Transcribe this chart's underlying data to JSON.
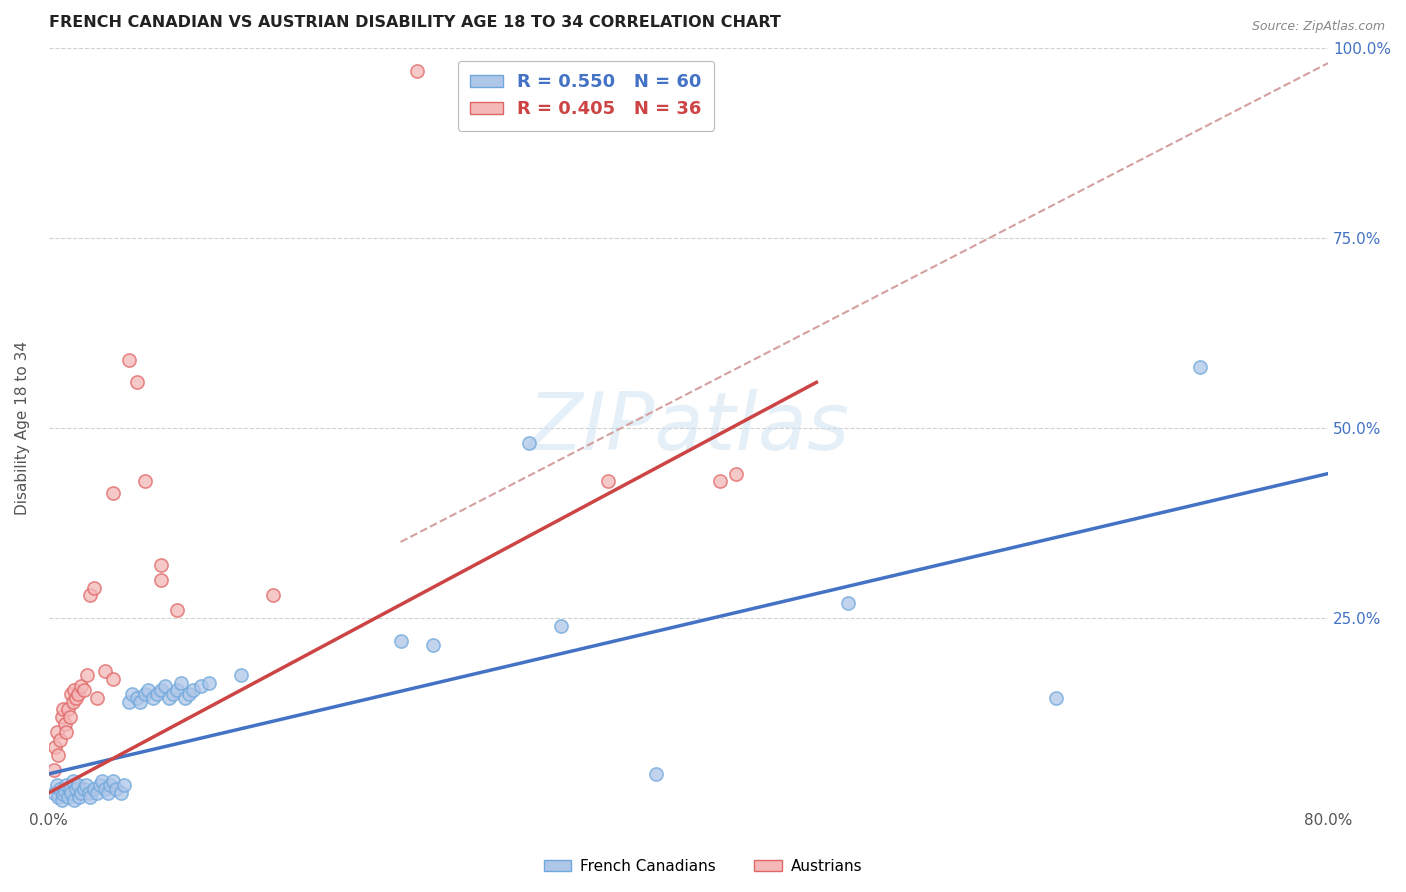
{
  "title": "FRENCH CANADIAN VS AUSTRIAN DISABILITY AGE 18 TO 34 CORRELATION CHART",
  "source": "Source: ZipAtlas.com",
  "ylabel": "Disability Age 18 to 34",
  "xlim": [
    0.0,
    0.8
  ],
  "ylim": [
    0.0,
    1.0
  ],
  "legend_blue_label": "R = 0.550   N = 60",
  "legend_pink_label": "R = 0.405   N = 36",
  "legend_footer_blue": "French Canadians",
  "legend_footer_pink": "Austrians",
  "blue_fill": "#aec6e8",
  "pink_fill": "#f4b8b8",
  "blue_edge": "#6fa8dc",
  "pink_edge": "#e06666",
  "diagonal_color": "#d4a0a0",
  "blue_line_color": "#4472c4",
  "pink_line_color": "#cc4444",
  "watermark": "ZIPatlas",
  "blue_scatter": [
    [
      0.003,
      0.02
    ],
    [
      0.005,
      0.03
    ],
    [
      0.006,
      0.015
    ],
    [
      0.007,
      0.025
    ],
    [
      0.008,
      0.01
    ],
    [
      0.009,
      0.018
    ],
    [
      0.01,
      0.022
    ],
    [
      0.011,
      0.03
    ],
    [
      0.012,
      0.015
    ],
    [
      0.013,
      0.025
    ],
    [
      0.014,
      0.02
    ],
    [
      0.015,
      0.035
    ],
    [
      0.016,
      0.01
    ],
    [
      0.017,
      0.025
    ],
    [
      0.018,
      0.03
    ],
    [
      0.019,
      0.015
    ],
    [
      0.02,
      0.02
    ],
    [
      0.022,
      0.025
    ],
    [
      0.023,
      0.03
    ],
    [
      0.025,
      0.02
    ],
    [
      0.026,
      0.015
    ],
    [
      0.028,
      0.025
    ],
    [
      0.03,
      0.02
    ],
    [
      0.032,
      0.03
    ],
    [
      0.033,
      0.035
    ],
    [
      0.035,
      0.025
    ],
    [
      0.037,
      0.02
    ],
    [
      0.038,
      0.03
    ],
    [
      0.04,
      0.035
    ],
    [
      0.042,
      0.025
    ],
    [
      0.045,
      0.02
    ],
    [
      0.047,
      0.03
    ],
    [
      0.05,
      0.14
    ],
    [
      0.052,
      0.15
    ],
    [
      0.055,
      0.145
    ],
    [
      0.057,
      0.14
    ],
    [
      0.06,
      0.15
    ],
    [
      0.062,
      0.155
    ],
    [
      0.065,
      0.145
    ],
    [
      0.068,
      0.15
    ],
    [
      0.07,
      0.155
    ],
    [
      0.073,
      0.16
    ],
    [
      0.075,
      0.145
    ],
    [
      0.078,
      0.15
    ],
    [
      0.08,
      0.155
    ],
    [
      0.083,
      0.165
    ],
    [
      0.085,
      0.145
    ],
    [
      0.088,
      0.15
    ],
    [
      0.09,
      0.155
    ],
    [
      0.095,
      0.16
    ],
    [
      0.1,
      0.165
    ],
    [
      0.12,
      0.175
    ],
    [
      0.22,
      0.22
    ],
    [
      0.24,
      0.215
    ],
    [
      0.3,
      0.48
    ],
    [
      0.32,
      0.24
    ],
    [
      0.38,
      0.045
    ],
    [
      0.5,
      0.27
    ],
    [
      0.63,
      0.145
    ],
    [
      0.72,
      0.58
    ]
  ],
  "pink_scatter": [
    [
      0.003,
      0.05
    ],
    [
      0.004,
      0.08
    ],
    [
      0.005,
      0.1
    ],
    [
      0.006,
      0.07
    ],
    [
      0.007,
      0.09
    ],
    [
      0.008,
      0.12
    ],
    [
      0.009,
      0.13
    ],
    [
      0.01,
      0.11
    ],
    [
      0.011,
      0.1
    ],
    [
      0.012,
      0.13
    ],
    [
      0.013,
      0.12
    ],
    [
      0.014,
      0.15
    ],
    [
      0.015,
      0.14
    ],
    [
      0.016,
      0.155
    ],
    [
      0.017,
      0.145
    ],
    [
      0.018,
      0.15
    ],
    [
      0.02,
      0.16
    ],
    [
      0.022,
      0.155
    ],
    [
      0.024,
      0.175
    ],
    [
      0.026,
      0.28
    ],
    [
      0.028,
      0.29
    ],
    [
      0.03,
      0.145
    ],
    [
      0.035,
      0.18
    ],
    [
      0.04,
      0.17
    ],
    [
      0.04,
      0.415
    ],
    [
      0.05,
      0.59
    ],
    [
      0.055,
      0.56
    ],
    [
      0.06,
      0.43
    ],
    [
      0.07,
      0.3
    ],
    [
      0.07,
      0.32
    ],
    [
      0.08,
      0.26
    ],
    [
      0.14,
      0.28
    ],
    [
      0.23,
      0.97
    ],
    [
      0.35,
      0.43
    ],
    [
      0.42,
      0.43
    ],
    [
      0.43,
      0.44
    ]
  ],
  "blue_line_x": [
    0.0,
    0.8
  ],
  "blue_line_y": [
    0.045,
    0.44
  ],
  "pink_line_x": [
    0.0,
    0.48
  ],
  "pink_line_y": [
    0.02,
    0.56
  ],
  "diag_line_x": [
    0.22,
    0.8
  ],
  "diag_line_y": [
    0.35,
    0.98
  ]
}
